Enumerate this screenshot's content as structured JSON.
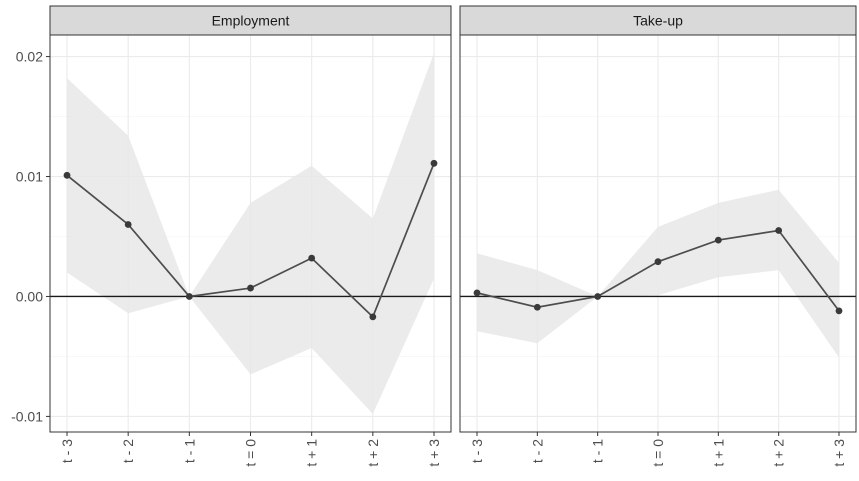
{
  "chart_data": {
    "type": "line",
    "x_categories": [
      "t - 3",
      "t - 2",
      "t - 1",
      "t = 0",
      "t + 1",
      "t + 2",
      "t + 3"
    ],
    "y_ticks": [
      -0.01,
      0.0,
      0.01,
      0.02
    ],
    "y_tick_labels": [
      "-0.01",
      "0.00",
      "0.01",
      "0.02"
    ],
    "ylim": [
      -0.0113,
      0.0218
    ],
    "grid": true,
    "reference_line_y": 0,
    "panels": [
      {
        "title": "Employment",
        "values": [
          0.0101,
          0.006,
          0.0,
          0.0007,
          0.0032,
          -0.0017,
          0.0111
        ],
        "ci_lower": [
          0.002,
          -0.0014,
          0.0,
          -0.0065,
          -0.0043,
          -0.0098,
          0.0015
        ],
        "ci_upper": [
          0.0182,
          0.0134,
          0.0,
          0.0078,
          0.0109,
          0.0065,
          0.0203
        ]
      },
      {
        "title": "Take-up",
        "values": [
          0.0003,
          -0.0009,
          0.0,
          0.0029,
          0.0047,
          0.0055,
          -0.0012
        ],
        "ci_lower": [
          -0.0029,
          -0.0039,
          0.0,
          0.0001,
          0.0016,
          0.0022,
          -0.0051
        ],
        "ci_upper": [
          0.0036,
          0.0022,
          0.0,
          0.0058,
          0.0078,
          0.0089,
          0.0028
        ]
      }
    ]
  }
}
